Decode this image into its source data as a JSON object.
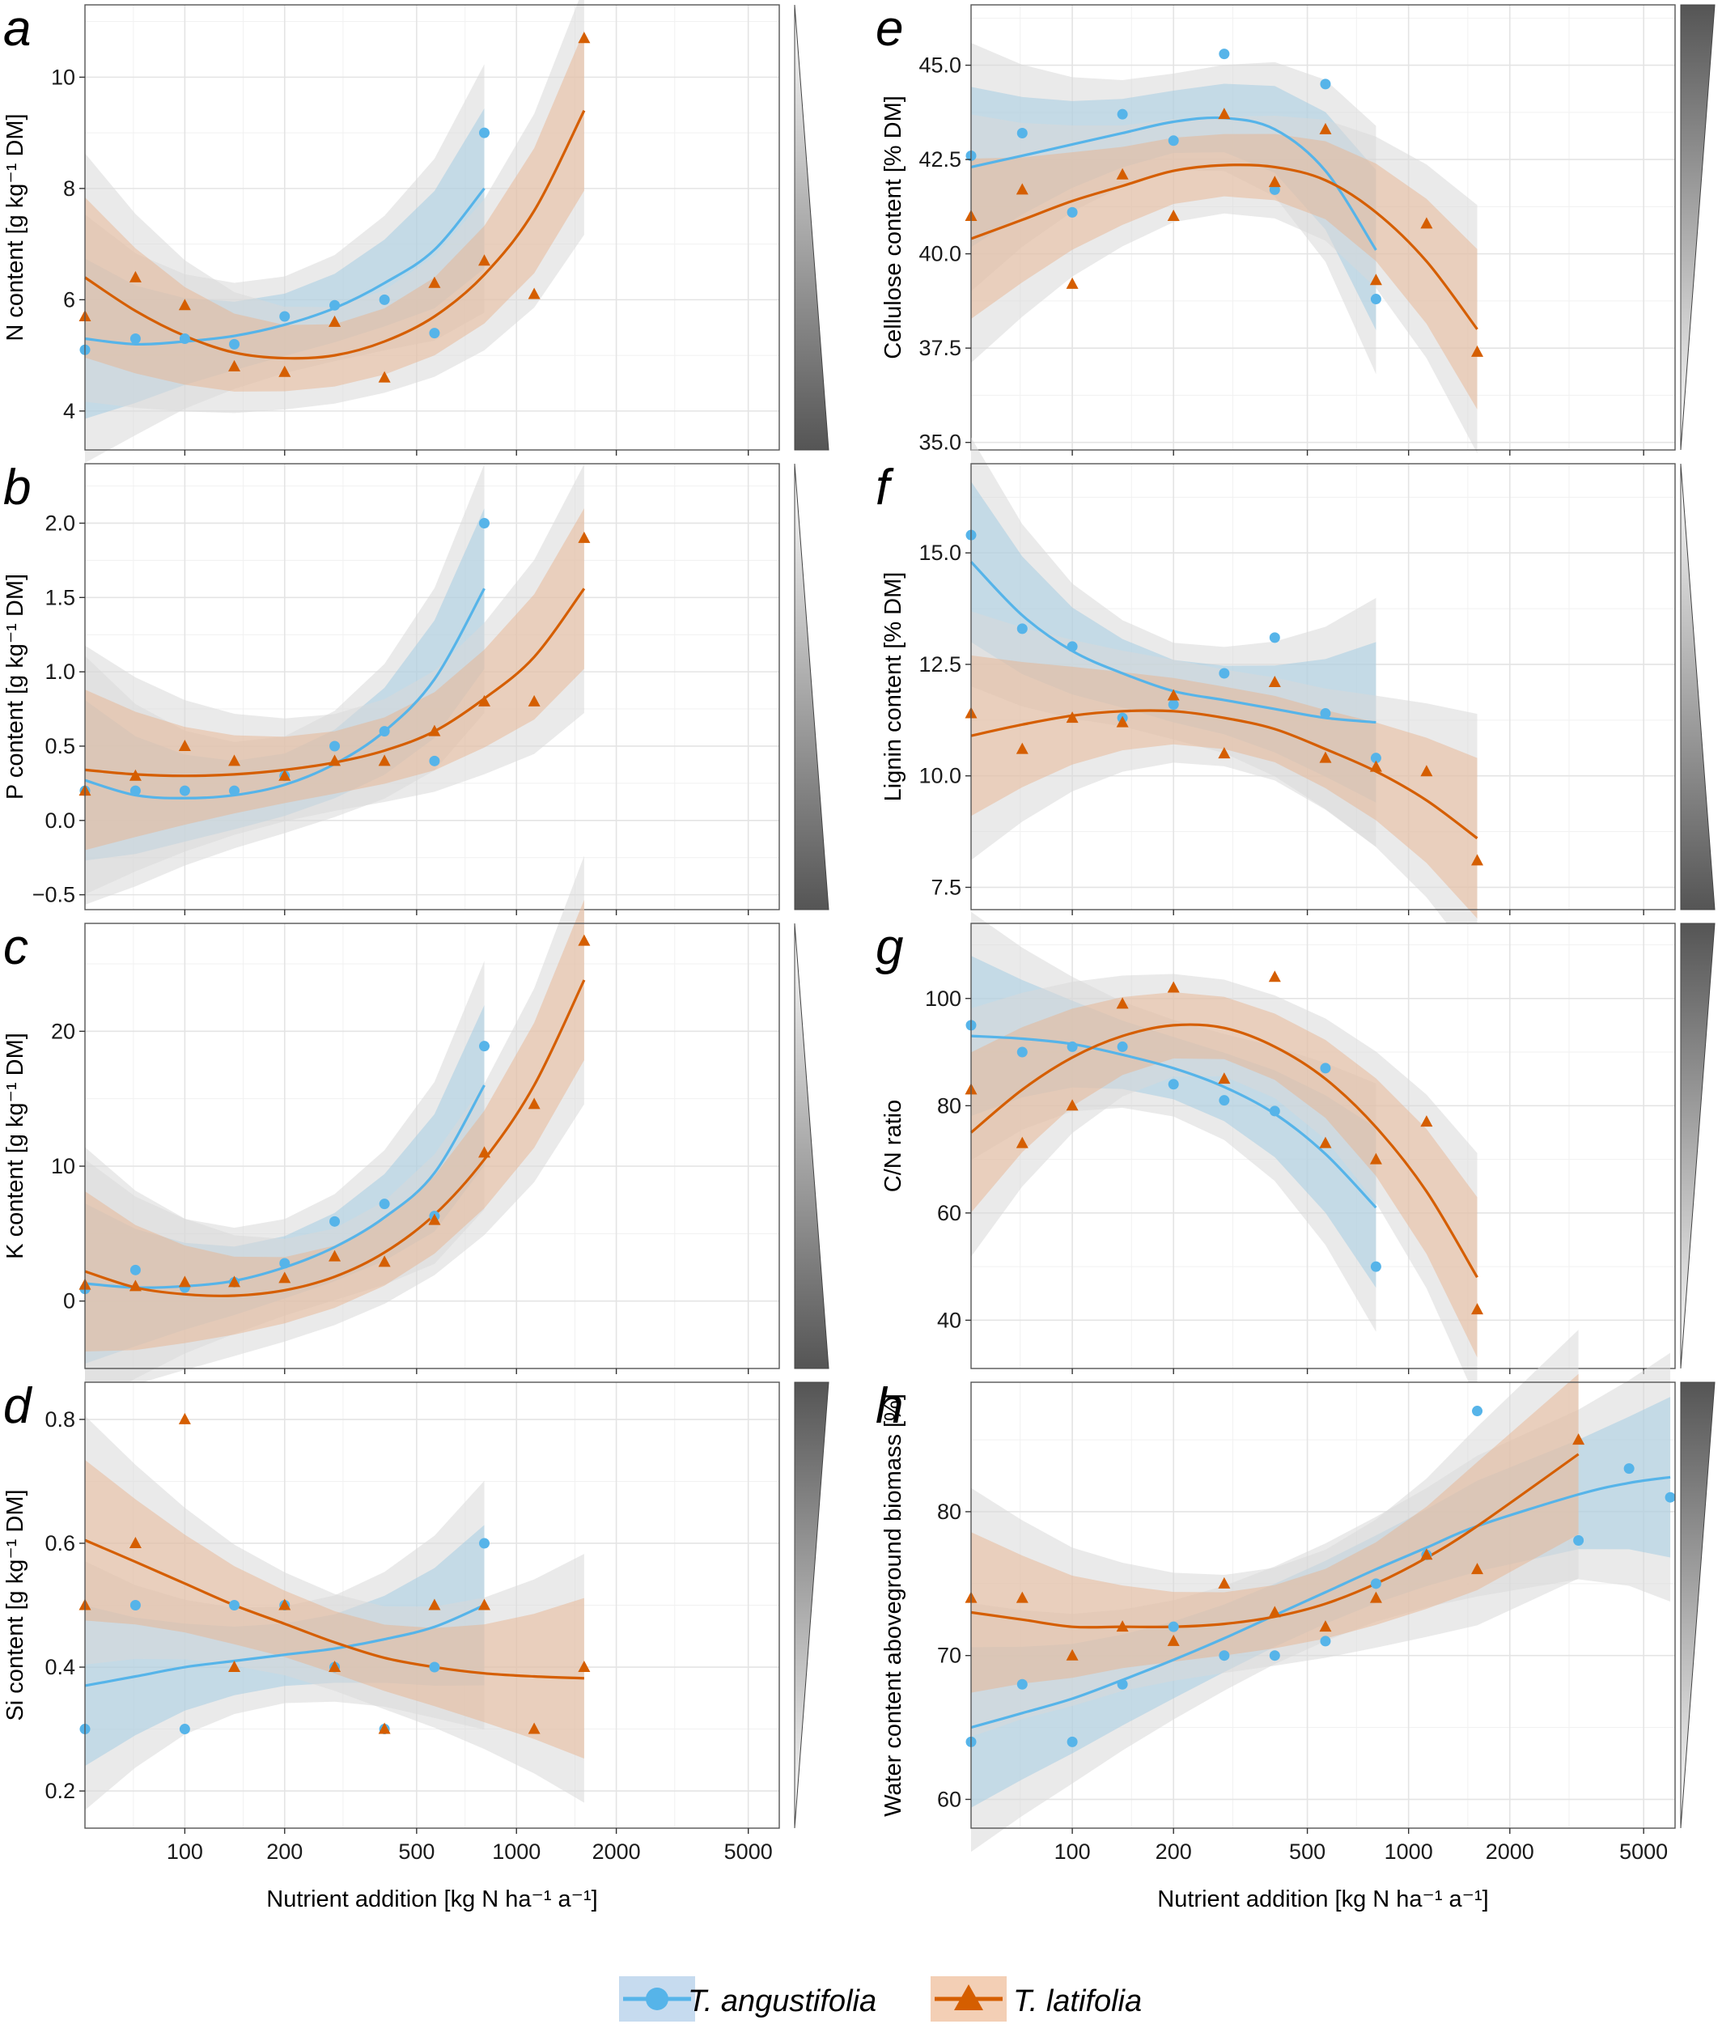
{
  "colors": {
    "angustifolia": "#56B4E9",
    "latifolia": "#D55E00",
    "band_outer": "#d9d9d9",
    "band_angustifolia": "#9ecae1",
    "band_latifolia": "#e7b48f"
  },
  "x_axis": {
    "title": "Nutrient addition [kg N ha⁻¹ a⁻¹]",
    "scale": "log",
    "ticks": [
      100,
      200,
      500,
      1000,
      2000,
      5000
    ],
    "tick_labels": [
      "100",
      "200",
      "500",
      "1000",
      "2000",
      "5000"
    ]
  },
  "legend": {
    "items": [
      {
        "label": "T. angustifolia",
        "color": "#56B4E9",
        "marker": "circle"
      },
      {
        "label": "T. latifolia",
        "color": "#D55E00",
        "marker": "triangle"
      }
    ]
  },
  "chart_data": [
    {
      "type": "scatter",
      "panel": "a",
      "ylabel": "N content [g kg⁻¹ DM]",
      "ylim": [
        3.3,
        11.3
      ],
      "yticks": [
        4,
        6,
        8,
        10
      ],
      "ytick_labels": [
        "4",
        "6",
        "8",
        "10"
      ],
      "xlim": [
        50,
        6200
      ],
      "gradient": "up",
      "series": [
        {
          "name": "T. angustifolia",
          "x": [
            50,
            71,
            100,
            141,
            200,
            283,
            400,
            566,
            800
          ],
          "y": [
            5.1,
            5.3,
            5.3,
            5.2,
            5.7,
            5.9,
            6.0,
            5.4,
            9.0
          ],
          "fit": [
            5.3,
            5.2,
            5.25,
            5.35,
            5.55,
            5.85,
            6.3,
            6.9,
            8.0
          ]
        },
        {
          "name": "T. latifolia",
          "x": [
            50,
            71,
            100,
            141,
            200,
            283,
            400,
            566,
            800,
            1131,
            1600
          ],
          "y": [
            5.7,
            6.4,
            5.9,
            4.8,
            4.7,
            5.6,
            4.6,
            6.3,
            6.7,
            6.1,
            10.7
          ],
          "fit": [
            6.4,
            5.8,
            5.35,
            5.05,
            4.95,
            5.0,
            5.25,
            5.7,
            6.45,
            7.6,
            9.4
          ]
        }
      ]
    },
    {
      "type": "scatter",
      "panel": "b",
      "ylabel": "P content [g kg⁻¹ DM]",
      "ylim": [
        -0.6,
        2.4
      ],
      "yticks": [
        -0.5,
        0.0,
        0.5,
        1.0,
        1.5,
        2.0
      ],
      "ytick_labels": [
        "−0.5",
        "0.0",
        "0.5",
        "1.0",
        "1.5",
        "2.0"
      ],
      "xlim": [
        50,
        6200
      ],
      "gradient": "up",
      "series": [
        {
          "name": "T. angustifolia",
          "x": [
            50,
            71,
            100,
            141,
            200,
            283,
            400,
            566,
            800
          ],
          "y": [
            0.2,
            0.2,
            0.2,
            0.2,
            0.3,
            0.5,
            0.6,
            0.4,
            2.0
          ],
          "fit": [
            0.27,
            0.17,
            0.15,
            0.17,
            0.24,
            0.38,
            0.6,
            0.95,
            1.56
          ]
        },
        {
          "name": "T. latifolia",
          "x": [
            50,
            71,
            100,
            141,
            200,
            283,
            400,
            566,
            800,
            1131,
            1600
          ],
          "y": [
            0.2,
            0.3,
            0.5,
            0.4,
            0.3,
            0.4,
            0.4,
            0.6,
            0.8,
            0.8,
            1.9
          ],
          "fit": [
            0.34,
            0.31,
            0.3,
            0.31,
            0.34,
            0.39,
            0.47,
            0.6,
            0.82,
            1.1,
            1.56
          ]
        }
      ]
    },
    {
      "type": "scatter",
      "panel": "c",
      "ylabel": "K content [g kg⁻¹ DM]",
      "ylim": [
        -5,
        28
      ],
      "yticks": [
        0,
        10,
        20
      ],
      "ytick_labels": [
        "0",
        "10",
        "20"
      ],
      "xlim": [
        50,
        6200
      ],
      "gradient": "up",
      "series": [
        {
          "name": "T. angustifolia",
          "x": [
            50,
            71,
            100,
            141,
            200,
            283,
            400,
            566,
            800
          ],
          "y": [
            0.9,
            2.3,
            1.0,
            1.4,
            2.8,
            5.9,
            7.2,
            6.3,
            18.9
          ],
          "fit": [
            1.3,
            1.0,
            1.1,
            1.5,
            2.5,
            4.0,
            6.2,
            9.5,
            16.0
          ]
        },
        {
          "name": "T. latifolia",
          "x": [
            50,
            71,
            100,
            141,
            200,
            283,
            400,
            566,
            800,
            1131,
            1600
          ],
          "y": [
            1.2,
            1.1,
            1.4,
            1.4,
            1.7,
            3.3,
            2.9,
            6.0,
            11.0,
            14.6,
            26.7
          ],
          "fit": [
            2.2,
            1.0,
            0.5,
            0.4,
            0.8,
            1.8,
            3.6,
            6.4,
            10.5,
            16.0,
            23.8
          ]
        }
      ]
    },
    {
      "type": "scatter",
      "panel": "d",
      "ylabel": "Si content [g kg⁻¹ DM]",
      "ylim": [
        0.14,
        0.86
      ],
      "yticks": [
        0.2,
        0.4,
        0.6,
        0.8
      ],
      "ytick_labels": [
        "0.2",
        "0.4",
        "0.6",
        "0.8"
      ],
      "xlim": [
        50,
        6200
      ],
      "gradient": "down",
      "series": [
        {
          "name": "T. angustifolia",
          "x": [
            50,
            71,
            100,
            141,
            200,
            283,
            400,
            566,
            800
          ],
          "y": [
            0.3,
            0.5,
            0.3,
            0.5,
            0.5,
            0.4,
            0.3,
            0.4,
            0.6
          ],
          "fit": [
            0.37,
            0.385,
            0.4,
            0.41,
            0.42,
            0.43,
            0.445,
            0.465,
            0.5
          ]
        },
        {
          "name": "T. latifolia",
          "x": [
            50,
            71,
            100,
            141,
            200,
            283,
            400,
            566,
            800,
            1131,
            1600
          ],
          "y": [
            0.5,
            0.6,
            0.8,
            0.4,
            0.5,
            0.4,
            0.3,
            0.5,
            0.5,
            0.3,
            0.4
          ],
          "fit": [
            0.605,
            0.57,
            0.535,
            0.5,
            0.47,
            0.44,
            0.415,
            0.4,
            0.39,
            0.385,
            0.382
          ]
        }
      ]
    },
    {
      "type": "scatter",
      "panel": "e",
      "ylabel": "Cellulose content [% DM]",
      "ylim": [
        34.8,
        46.6
      ],
      "yticks": [
        35.0,
        37.5,
        40.0,
        42.5,
        45.0
      ],
      "ytick_labels": [
        "35.0",
        "37.5",
        "40.0",
        "42.5",
        "45.0"
      ],
      "xlim": [
        50,
        6200
      ],
      "gradient": "down",
      "series": [
        {
          "name": "T. angustifolia",
          "x": [
            50,
            71,
            100,
            141,
            200,
            283,
            400,
            566,
            800
          ],
          "y": [
            42.6,
            43.2,
            41.1,
            43.7,
            43.0,
            45.3,
            41.7,
            44.5,
            38.8
          ],
          "fit": [
            42.3,
            42.6,
            42.9,
            43.2,
            43.5,
            43.6,
            43.3,
            42.2,
            40.1
          ]
        },
        {
          "name": "T. latifolia",
          "x": [
            50,
            71,
            100,
            141,
            200,
            283,
            400,
            566,
            800,
            1131,
            1600
          ],
          "y": [
            41.0,
            41.7,
            39.2,
            42.1,
            41.0,
            43.7,
            41.9,
            43.3,
            39.3,
            40.8,
            37.4
          ],
          "fit": [
            40.4,
            40.9,
            41.4,
            41.8,
            42.2,
            42.35,
            42.3,
            41.95,
            41.1,
            39.8,
            38.0
          ]
        }
      ]
    },
    {
      "type": "scatter",
      "panel": "f",
      "ylabel": "Lignin content [% DM]",
      "ylim": [
        7.0,
        17.0
      ],
      "yticks": [
        7.5,
        10.0,
        12.5,
        15.0
      ],
      "ytick_labels": [
        "7.5",
        "10.0",
        "12.5",
        "15.0"
      ],
      "xlim": [
        50,
        6200
      ],
      "gradient": "up",
      "series": [
        {
          "name": "T. angustifolia",
          "x": [
            50,
            71,
            100,
            141,
            200,
            283,
            400,
            566,
            800
          ],
          "y": [
            15.4,
            13.3,
            12.9,
            11.3,
            11.6,
            12.3,
            13.1,
            11.4,
            10.4
          ],
          "fit": [
            14.8,
            13.6,
            12.8,
            12.3,
            11.9,
            11.7,
            11.5,
            11.3,
            11.2
          ]
        },
        {
          "name": "T. latifolia",
          "x": [
            50,
            71,
            100,
            141,
            200,
            283,
            400,
            566,
            800,
            1131,
            1600
          ],
          "y": [
            11.4,
            10.6,
            11.3,
            11.2,
            11.8,
            10.5,
            12.1,
            10.4,
            10.2,
            10.1,
            8.1
          ],
          "fit": [
            10.9,
            11.15,
            11.35,
            11.45,
            11.45,
            11.3,
            11.05,
            10.6,
            10.1,
            9.45,
            8.6
          ]
        }
      ]
    },
    {
      "type": "scatter",
      "panel": "g",
      "ylabel": "C/N ratio",
      "ylim": [
        31,
        114
      ],
      "yticks": [
        40,
        60,
        80,
        100
      ],
      "ytick_labels": [
        "40",
        "60",
        "80",
        "100"
      ],
      "xlim": [
        50,
        6200
      ],
      "gradient": "down",
      "series": [
        {
          "name": "T. angustifolia",
          "x": [
            50,
            71,
            100,
            141,
            200,
            283,
            400,
            566,
            800
          ],
          "y": [
            95,
            90,
            91,
            91,
            84,
            81,
            79,
            87,
            50
          ],
          "fit": [
            93,
            92.5,
            91.5,
            89.5,
            87,
            83.5,
            78.5,
            71,
            61
          ]
        },
        {
          "name": "T. latifolia",
          "x": [
            50,
            71,
            100,
            141,
            200,
            283,
            400,
            566,
            800,
            1131,
            1600
          ],
          "y": [
            83,
            73,
            80,
            99,
            102,
            85,
            104,
            73,
            70,
            77,
            42
          ],
          "fit": [
            75,
            83,
            89,
            93,
            95,
            94.5,
            91,
            85,
            76,
            64,
            48
          ]
        }
      ]
    },
    {
      "type": "scatter",
      "panel": "h",
      "ylabel": "Water content aboveground biomass [%]",
      "ylim": [
        58,
        89
      ],
      "yticks": [
        60,
        70,
        80
      ],
      "ytick_labels": [
        "60",
        "70",
        "80"
      ],
      "xlim": [
        50,
        6200
      ],
      "gradient": "down",
      "series": [
        {
          "name": "T. angustifolia",
          "x": [
            50,
            71,
            100,
            141,
            200,
            283,
            400,
            566,
            800,
            1131,
            1600,
            3200,
            4525,
            6000
          ],
          "y": [
            64,
            68,
            64,
            68,
            72,
            70,
            70,
            71,
            75,
            77,
            87,
            78,
            83,
            81
          ],
          "fit": [
            65,
            66,
            67,
            68.3,
            69.7,
            71.2,
            72.8,
            74.4,
            76,
            77.5,
            79,
            81.2,
            82,
            82.4
          ]
        },
        {
          "name": "T. latifolia",
          "x": [
            50,
            71,
            100,
            141,
            200,
            283,
            400,
            566,
            800,
            1131,
            1600,
            3200
          ],
          "y": [
            74,
            74,
            70,
            72,
            71,
            75,
            73,
            72,
            74,
            77,
            76,
            85
          ],
          "fit": [
            73,
            72.5,
            72,
            72,
            72,
            72.2,
            72.7,
            73.6,
            75,
            76.8,
            79,
            84
          ]
        }
      ]
    }
  ]
}
